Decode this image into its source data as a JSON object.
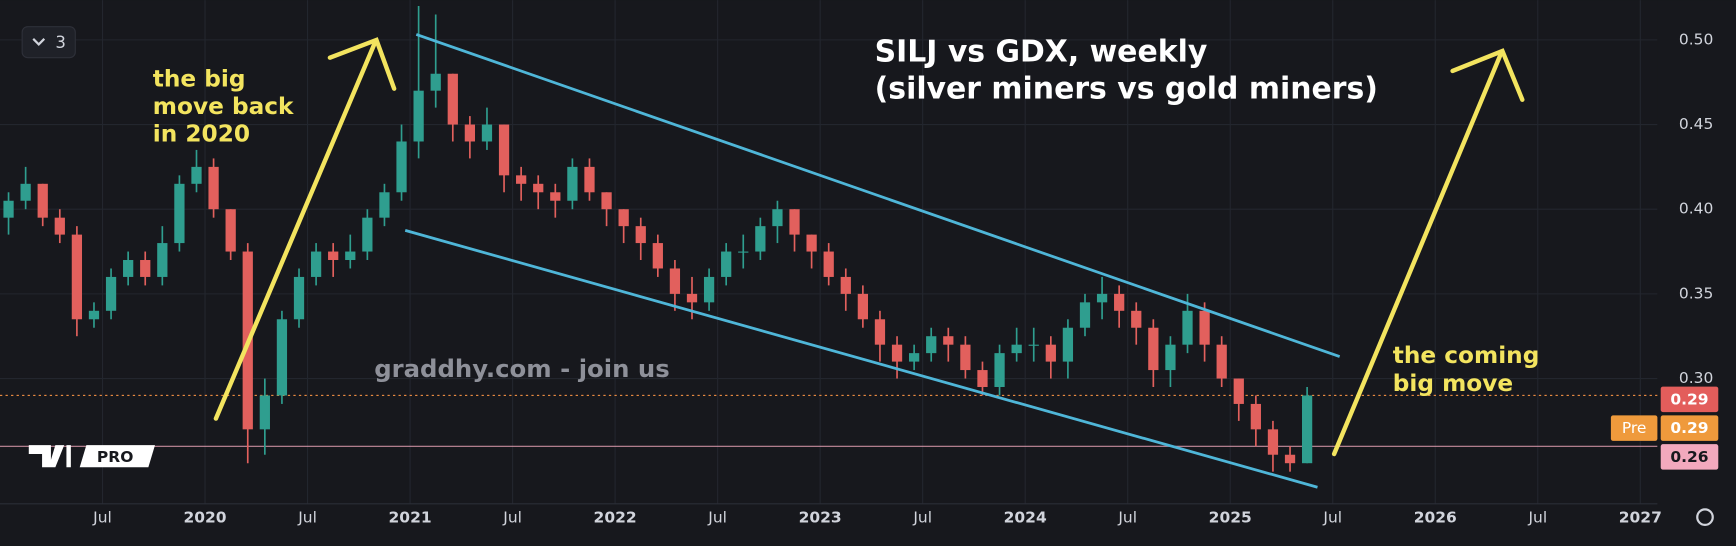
{
  "chart_data": {
    "type": "candlestick",
    "title": "SILJ vs GDX, weekly",
    "subtitle": "(silver miners vs gold miners)",
    "annotations": {
      "left": [
        "the big",
        "move back",
        "in 2020"
      ],
      "right": [
        "the coming",
        "big move"
      ],
      "watermark": "graddhy.com - join us",
      "interval_count": "3",
      "logo": "PRO"
    },
    "x": [
      "2019-01",
      "2019-02",
      "2019-03",
      "2019-04",
      "2019-05",
      "2019-06",
      "2019-07",
      "2019-08",
      "2019-09",
      "2019-10",
      "2019-11",
      "2019-12",
      "2020-01",
      "2020-02",
      "2020-03",
      "2020-04",
      "2020-05",
      "2020-06",
      "2020-07",
      "2020-08",
      "2020-09",
      "2020-10",
      "2020-11",
      "2020-12",
      "2021-01",
      "2021-02",
      "2021-03",
      "2021-04",
      "2021-05",
      "2021-06",
      "2021-07",
      "2021-08",
      "2021-09",
      "2021-10",
      "2021-11",
      "2021-12",
      "2022-01",
      "2022-02",
      "2022-03",
      "2022-04",
      "2022-05",
      "2022-06",
      "2022-07",
      "2022-08",
      "2022-09",
      "2022-10",
      "2022-11",
      "2022-12",
      "2023-01",
      "2023-02",
      "2023-03",
      "2023-04",
      "2023-05",
      "2023-06",
      "2023-07",
      "2023-08",
      "2023-09",
      "2023-10",
      "2023-11",
      "2023-12",
      "2024-01",
      "2024-02",
      "2024-03",
      "2024-04",
      "2024-05",
      "2024-06",
      "2024-07",
      "2024-08",
      "2024-09",
      "2024-10",
      "2024-11",
      "2024-12",
      "2025-01",
      "2025-02",
      "2025-03",
      "2025-04",
      "2025-05"
    ],
    "open": [
      0.395,
      0.405,
      0.415,
      0.395,
      0.385,
      0.335,
      0.34,
      0.36,
      0.37,
      0.36,
      0.38,
      0.415,
      0.425,
      0.4,
      0.375,
      0.27,
      0.29,
      0.335,
      0.36,
      0.375,
      0.37,
      0.375,
      0.395,
      0.41,
      0.44,
      0.47,
      0.48,
      0.45,
      0.44,
      0.45,
      0.42,
      0.415,
      0.41,
      0.405,
      0.425,
      0.41,
      0.4,
      0.39,
      0.38,
      0.365,
      0.35,
      0.345,
      0.36,
      0.375,
      0.375,
      0.39,
      0.4,
      0.385,
      0.375,
      0.36,
      0.35,
      0.335,
      0.32,
      0.31,
      0.315,
      0.325,
      0.32,
      0.305,
      0.295,
      0.315,
      0.32,
      0.32,
      0.31,
      0.33,
      0.345,
      0.35,
      0.34,
      0.33,
      0.305,
      0.32,
      0.34,
      0.32,
      0.3,
      0.285,
      0.27,
      0.255,
      0.25
    ],
    "high": [
      0.41,
      0.425,
      0.415,
      0.4,
      0.39,
      0.345,
      0.365,
      0.375,
      0.375,
      0.39,
      0.42,
      0.435,
      0.43,
      0.4,
      0.38,
      0.3,
      0.34,
      0.365,
      0.38,
      0.38,
      0.385,
      0.4,
      0.415,
      0.45,
      0.52,
      0.515,
      0.48,
      0.455,
      0.46,
      0.45,
      0.425,
      0.42,
      0.415,
      0.43,
      0.43,
      0.41,
      0.4,
      0.395,
      0.385,
      0.37,
      0.36,
      0.365,
      0.38,
      0.385,
      0.395,
      0.405,
      0.4,
      0.385,
      0.38,
      0.365,
      0.355,
      0.34,
      0.325,
      0.32,
      0.33,
      0.33,
      0.325,
      0.31,
      0.32,
      0.33,
      0.33,
      0.325,
      0.335,
      0.35,
      0.36,
      0.355,
      0.345,
      0.335,
      0.325,
      0.35,
      0.345,
      0.325,
      0.3,
      0.29,
      0.275,
      0.26,
      0.295
    ],
    "low": [
      0.385,
      0.4,
      0.39,
      0.38,
      0.325,
      0.33,
      0.335,
      0.355,
      0.355,
      0.355,
      0.375,
      0.41,
      0.395,
      0.37,
      0.25,
      0.255,
      0.285,
      0.33,
      0.355,
      0.36,
      0.365,
      0.37,
      0.39,
      0.405,
      0.43,
      0.46,
      0.44,
      0.43,
      0.435,
      0.41,
      0.405,
      0.4,
      0.395,
      0.4,
      0.405,
      0.39,
      0.38,
      0.37,
      0.36,
      0.34,
      0.335,
      0.34,
      0.355,
      0.365,
      0.37,
      0.38,
      0.375,
      0.365,
      0.355,
      0.34,
      0.33,
      0.31,
      0.3,
      0.305,
      0.31,
      0.31,
      0.3,
      0.29,
      0.29,
      0.31,
      0.31,
      0.3,
      0.3,
      0.325,
      0.335,
      0.33,
      0.32,
      0.295,
      0.295,
      0.315,
      0.31,
      0.295,
      0.275,
      0.26,
      0.245,
      0.245,
      0.25
    ],
    "close": [
      0.405,
      0.415,
      0.395,
      0.385,
      0.335,
      0.34,
      0.36,
      0.37,
      0.36,
      0.38,
      0.415,
      0.425,
      0.4,
      0.375,
      0.27,
      0.29,
      0.335,
      0.36,
      0.375,
      0.37,
      0.375,
      0.395,
      0.41,
      0.44,
      0.47,
      0.48,
      0.45,
      0.44,
      0.45,
      0.42,
      0.415,
      0.41,
      0.405,
      0.425,
      0.41,
      0.4,
      0.39,
      0.38,
      0.365,
      0.35,
      0.345,
      0.36,
      0.375,
      0.375,
      0.39,
      0.4,
      0.385,
      0.375,
      0.36,
      0.35,
      0.335,
      0.32,
      0.31,
      0.315,
      0.325,
      0.32,
      0.305,
      0.295,
      0.315,
      0.32,
      0.32,
      0.31,
      0.33,
      0.345,
      0.35,
      0.34,
      0.33,
      0.305,
      0.32,
      0.34,
      0.32,
      0.3,
      0.285,
      0.27,
      0.255,
      0.25,
      0.29
    ],
    "up_color": "#2f9e8f",
    "down_color": "#e2605d",
    "xlim": [
      "2019-01",
      "2027-02"
    ],
    "xticks": [
      {
        "value": "2019-07",
        "label": "Jul"
      },
      {
        "value": "2020-01",
        "label": "2020"
      },
      {
        "value": "2020-07",
        "label": "Jul"
      },
      {
        "value": "2021-01",
        "label": "2021"
      },
      {
        "value": "2021-07",
        "label": "Jul"
      },
      {
        "value": "2022-01",
        "label": "2022"
      },
      {
        "value": "2022-07",
        "label": "Jul"
      },
      {
        "value": "2023-01",
        "label": "2023"
      },
      {
        "value": "2023-07",
        "label": "Jul"
      },
      {
        "value": "2024-01",
        "label": "2024"
      },
      {
        "value": "2024-07",
        "label": "Jul"
      },
      {
        "value": "2025-01",
        "label": "2025"
      },
      {
        "value": "2025-07",
        "label": "Jul"
      },
      {
        "value": "2026-01",
        "label": "2026"
      },
      {
        "value": "2026-07",
        "label": "Jul"
      },
      {
        "value": "2027-01",
        "label": "2027"
      }
    ],
    "ylim": [
      0.226,
      0.5235
    ],
    "yticks": [
      {
        "value": 0.3,
        "label": "0.30"
      },
      0.35,
      {
        "value": 0.4,
        "label": "0.40"
      },
      0.45,
      {
        "value": 0.5,
        "label": "0.50"
      }
    ],
    "grid": true,
    "price_labels": [
      {
        "label": "0.29",
        "value": 0.29,
        "color": "#e35d5b"
      },
      {
        "tag": "Pre",
        "label": "0.29",
        "value": 0.29,
        "color": "#ef9a3c"
      },
      {
        "label": "0.26",
        "value": 0.26,
        "color": "#f2a9bd"
      }
    ]
  }
}
